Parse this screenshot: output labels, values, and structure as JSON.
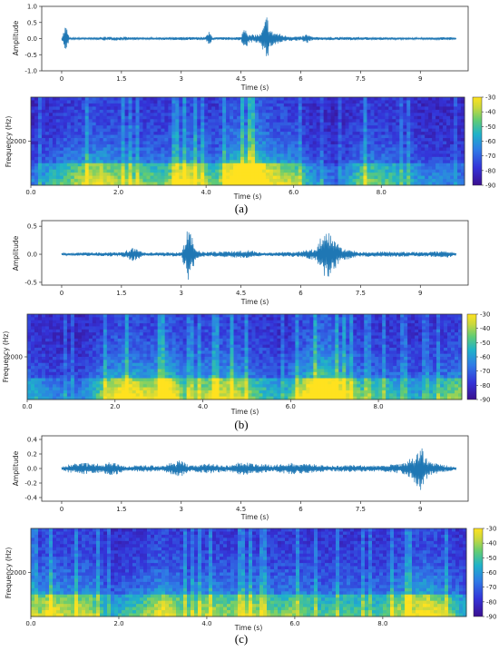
{
  "figure": {
    "panels": [
      {
        "label": "(a)",
        "waveform_ylabel": "Amplitude",
        "waveform_xlabel": "Time (s)",
        "spectrogram_ylabel": "Frequency (Hz)",
        "spectrogram_xlabel": "Time (s)"
      },
      {
        "label": "(b)",
        "waveform_ylabel": "Amplitude",
        "waveform_xlabel": "Time (s)",
        "spectrogram_ylabel": "Frequency (Hz)",
        "spectrogram_xlabel": "Time (s)"
      },
      {
        "label": "(c)",
        "waveform_ylabel": "Amplitude",
        "waveform_xlabel": "Time (s)",
        "spectrogram_ylabel": "Frequency (Hz)",
        "spectrogram_xlabel": "Time (s)"
      }
    ]
  },
  "colors": {
    "waveform": "#1f77b4",
    "colormap": [
      "#440c8c",
      "#3b2fd6",
      "#2f6ae0",
      "#1aa6d8",
      "#3cc78c",
      "#a6d65a",
      "#f2e44a",
      "#ffe21f"
    ]
  },
  "chart_data": [
    {
      "type": "line",
      "name": "waveform-a",
      "xlabel": "Time (s)",
      "ylabel": "Amplitude",
      "xlim": [
        -0.5,
        10.2
      ],
      "ylim": [
        -1.0,
        1.0
      ],
      "xticks": [
        "0",
        "1.5",
        "3",
        "4.5",
        "6",
        "7.5",
        "9"
      ],
      "xtick_values": [
        0,
        1.5,
        3,
        4.5,
        6,
        7.5,
        9
      ],
      "yticks": [
        "1.0",
        "0.5",
        "0.0",
        "-0.5",
        "-1.0"
      ],
      "ytick_values": [
        1.0,
        0.5,
        0.0,
        -0.5,
        -1.0
      ],
      "envelope": [
        [
          0.0,
          0.02
        ],
        [
          0.1,
          0.45
        ],
        [
          0.2,
          0.03
        ],
        [
          0.8,
          0.03
        ],
        [
          1.1,
          0.06
        ],
        [
          1.5,
          0.06
        ],
        [
          2.0,
          0.03
        ],
        [
          3.0,
          0.05
        ],
        [
          3.6,
          0.05
        ],
        [
          3.7,
          0.22
        ],
        [
          3.8,
          0.04
        ],
        [
          4.5,
          0.05
        ],
        [
          4.6,
          0.5
        ],
        [
          4.7,
          0.12
        ],
        [
          5.0,
          0.15
        ],
        [
          5.15,
          0.75
        ],
        [
          5.25,
          0.25
        ],
        [
          5.6,
          0.1
        ],
        [
          6.0,
          0.06
        ],
        [
          6.15,
          0.15
        ],
        [
          6.3,
          0.05
        ],
        [
          7.0,
          0.05
        ],
        [
          7.5,
          0.05
        ],
        [
          8.0,
          0.04
        ],
        [
          9.0,
          0.03
        ],
        [
          9.7,
          0.05
        ],
        [
          9.9,
          0.02
        ]
      ]
    },
    {
      "type": "heatmap",
      "name": "spectrogram-a",
      "xlabel": "Time (s)",
      "ylabel": "Frequency (Hz)",
      "xlim": [
        0.0,
        9.9
      ],
      "xticks": [
        "0.0",
        "2.0",
        "4.0",
        "6.0",
        "8.0"
      ],
      "xtick_values": [
        0,
        2,
        4,
        6,
        8
      ],
      "yticks": [
        "2000"
      ],
      "ytick_values": [
        2000
      ],
      "ylim": [
        0,
        4000
      ],
      "colorbar_ticks": [
        "-30",
        "-40",
        "-50",
        "-60",
        "-70",
        "-80",
        "-90"
      ],
      "colorbar_values": [
        -30,
        -40,
        -50,
        -60,
        -70,
        -80,
        -90
      ],
      "energy_profile": [
        [
          0.0,
          0.25
        ],
        [
          0.6,
          0.45
        ],
        [
          1.5,
          0.7
        ],
        [
          2.1,
          0.55
        ],
        [
          3.0,
          0.5
        ],
        [
          3.6,
          0.75
        ],
        [
          4.2,
          0.45
        ],
        [
          4.6,
          0.85
        ],
        [
          5.1,
          1.0
        ],
        [
          5.5,
          0.7
        ],
        [
          6.0,
          0.6
        ],
        [
          6.4,
          0.35
        ],
        [
          7.0,
          0.2
        ],
        [
          7.6,
          0.55
        ],
        [
          8.3,
          0.45
        ],
        [
          9.0,
          0.3
        ],
        [
          9.9,
          0.25
        ]
      ]
    },
    {
      "type": "line",
      "name": "waveform-b",
      "xlabel": "Time (s)",
      "ylabel": "Amplitude",
      "xlim": [
        -0.5,
        10.2
      ],
      "ylim": [
        -0.55,
        0.6
      ],
      "xticks": [
        "0",
        "1.5",
        "3",
        "4.5",
        "6",
        "7.5",
        "9"
      ],
      "xtick_values": [
        0,
        1.5,
        3,
        4.5,
        6,
        7.5,
        9
      ],
      "yticks": [
        "0.5",
        "0.0",
        "-0.5"
      ],
      "ytick_values": [
        0.5,
        0.0,
        -0.5
      ],
      "envelope": [
        [
          0.0,
          0.02
        ],
        [
          0.5,
          0.03
        ],
        [
          1.5,
          0.04
        ],
        [
          1.8,
          0.12
        ],
        [
          2.1,
          0.03
        ],
        [
          3.0,
          0.04
        ],
        [
          3.2,
          0.55
        ],
        [
          3.35,
          0.1
        ],
        [
          3.6,
          0.04
        ],
        [
          4.3,
          0.06
        ],
        [
          4.7,
          0.08
        ],
        [
          5.0,
          0.03
        ],
        [
          6.0,
          0.05
        ],
        [
          6.4,
          0.12
        ],
        [
          6.6,
          0.5
        ],
        [
          6.8,
          0.35
        ],
        [
          7.0,
          0.12
        ],
        [
          7.5,
          0.04
        ],
        [
          8.0,
          0.05
        ],
        [
          9.0,
          0.04
        ],
        [
          9.7,
          0.06
        ],
        [
          9.9,
          0.02
        ]
      ]
    },
    {
      "type": "heatmap",
      "name": "spectrogram-b",
      "xlabel": "Time (s)",
      "ylabel": "Frequency (Hz)",
      "xlim": [
        0.0,
        9.9
      ],
      "xticks": [
        "0.0",
        "2.0",
        "4.0",
        "6.0",
        "8.0"
      ],
      "xtick_values": [
        0,
        2,
        4,
        6,
        8
      ],
      "yticks": [
        "2000"
      ],
      "ytick_values": [
        2000
      ],
      "ylim": [
        0,
        4000
      ],
      "colorbar_ticks": [
        "-30",
        "-40",
        "-50",
        "-60",
        "-70",
        "-80",
        "-90"
      ],
      "colorbar_values": [
        -30,
        -40,
        -50,
        -60,
        -70,
        -80,
        -90
      ],
      "energy_profile": [
        [
          0.0,
          0.4
        ],
        [
          0.5,
          0.3
        ],
        [
          1.2,
          0.25
        ],
        [
          1.8,
          0.6
        ],
        [
          2.2,
          0.8
        ],
        [
          2.8,
          0.65
        ],
        [
          3.2,
          0.9
        ],
        [
          3.6,
          0.5
        ],
        [
          4.2,
          0.65
        ],
        [
          4.7,
          0.7
        ],
        [
          5.2,
          0.5
        ],
        [
          5.8,
          0.35
        ],
        [
          6.3,
          0.7
        ],
        [
          6.7,
          1.0
        ],
        [
          7.1,
          0.8
        ],
        [
          7.6,
          0.5
        ],
        [
          8.2,
          0.45
        ],
        [
          9.0,
          0.35
        ],
        [
          9.9,
          0.6
        ]
      ]
    },
    {
      "type": "line",
      "name": "waveform-c",
      "xlabel": "Time (s)",
      "ylabel": "Amplitude",
      "xlim": [
        -0.5,
        10.2
      ],
      "ylim": [
        -0.45,
        0.45
      ],
      "xticks": [
        "0",
        "1.5",
        "3",
        "4.5",
        "6",
        "7.5",
        "9"
      ],
      "xtick_values": [
        0,
        1.5,
        3,
        4.5,
        6,
        7.5,
        9
      ],
      "yticks": [
        "0.4",
        "0.2",
        "0.0",
        "-0.2",
        "-0.4"
      ],
      "ytick_values": [
        0.4,
        0.2,
        0.0,
        -0.2,
        -0.4
      ],
      "envelope": [
        [
          0.0,
          0.02
        ],
        [
          0.2,
          0.06
        ],
        [
          0.6,
          0.08
        ],
        [
          1.0,
          0.06
        ],
        [
          1.3,
          0.1
        ],
        [
          1.6,
          0.03
        ],
        [
          2.0,
          0.05
        ],
        [
          2.5,
          0.04
        ],
        [
          3.0,
          0.12
        ],
        [
          3.2,
          0.04
        ],
        [
          3.7,
          0.07
        ],
        [
          4.2,
          0.04
        ],
        [
          4.5,
          0.1
        ],
        [
          4.8,
          0.07
        ],
        [
          5.3,
          0.05
        ],
        [
          5.8,
          0.08
        ],
        [
          6.3,
          0.06
        ],
        [
          6.8,
          0.04
        ],
        [
          7.3,
          0.05
        ],
        [
          8.0,
          0.04
        ],
        [
          8.5,
          0.07
        ],
        [
          8.8,
          0.15
        ],
        [
          9.0,
          0.33
        ],
        [
          9.2,
          0.1
        ],
        [
          9.6,
          0.05
        ],
        [
          9.9,
          0.02
        ]
      ]
    },
    {
      "type": "heatmap",
      "name": "spectrogram-c",
      "xlabel": "Time (s)",
      "ylabel": "Frequency (Hz)",
      "xlim": [
        0.0,
        9.9
      ],
      "xticks": [
        "0.0",
        "2.0",
        "4.0",
        "6.0",
        "8.0"
      ],
      "xtick_values": [
        0,
        2,
        4,
        6,
        8
      ],
      "yticks": [
        "2000"
      ],
      "ytick_values": [
        2000
      ],
      "ylim": [
        0,
        4000
      ],
      "colorbar_ticks": [
        "-30",
        "-40",
        "-50",
        "-60",
        "-70",
        "-80",
        "-90"
      ],
      "colorbar_values": [
        -30,
        -40,
        -50,
        -60,
        -70,
        -80,
        -90
      ],
      "energy_profile": [
        [
          0.0,
          0.45
        ],
        [
          0.4,
          0.7
        ],
        [
          0.9,
          0.6
        ],
        [
          1.3,
          0.65
        ],
        [
          1.8,
          0.35
        ],
        [
          2.5,
          0.5
        ],
        [
          3.0,
          0.7
        ],
        [
          3.6,
          0.5
        ],
        [
          4.0,
          0.6
        ],
        [
          4.5,
          0.55
        ],
        [
          5.0,
          0.6
        ],
        [
          5.6,
          0.5
        ],
        [
          6.0,
          0.55
        ],
        [
          6.6,
          0.45
        ],
        [
          7.2,
          0.5
        ],
        [
          7.8,
          0.45
        ],
        [
          8.4,
          0.6
        ],
        [
          9.0,
          0.75
        ],
        [
          9.5,
          0.55
        ],
        [
          9.9,
          0.35
        ]
      ]
    }
  ]
}
